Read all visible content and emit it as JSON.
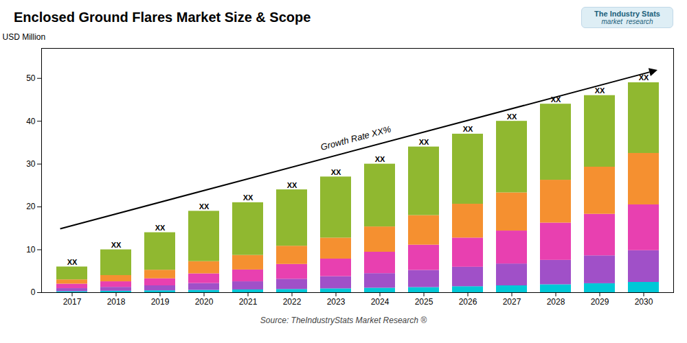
{
  "chart_data": {
    "type": "bar",
    "stacked": true,
    "title": "Enclosed Ground Flares Market Size & Scope",
    "ylabel": "USD Million",
    "caption": "Source: TheIndustryStats Market Research ®",
    "logo": [
      "The Industry Stats",
      "market  research"
    ],
    "annotations": [
      "Growth Rate XX%"
    ],
    "categories": [
      2017,
      2018,
      2019,
      2020,
      2021,
      2022,
      2023,
      2024,
      2025,
      2026,
      2027,
      2028,
      2029,
      2030
    ],
    "series": [
      {
        "color": "#00c8d7",
        "values": [
          0.25,
          0.35,
          0.45,
          0.55,
          0.65,
          0.75,
          0.9,
          1.05,
          1.2,
          1.4,
          1.6,
          1.85,
          2.1,
          2.4
        ]
      },
      {
        "color": "#a050c8",
        "values": [
          0.7,
          0.9,
          1.15,
          1.6,
          1.9,
          2.4,
          2.85,
          3.4,
          4.0,
          4.55,
          5.1,
          5.7,
          6.5,
          7.4
        ]
      },
      {
        "color": "#e840b0",
        "values": [
          1.05,
          1.3,
          1.65,
          2.25,
          2.75,
          3.45,
          4.1,
          5.0,
          5.9,
          6.8,
          7.7,
          8.7,
          9.7,
          10.7
        ]
      },
      {
        "color": "#f59030",
        "values": [
          1.0,
          1.45,
          2.0,
          2.85,
          3.4,
          4.25,
          4.9,
          5.9,
          6.9,
          7.9,
          8.9,
          10.0,
          11.0,
          12.0
        ]
      },
      {
        "color": "#90b830",
        "values": [
          3.0,
          6.0,
          8.75,
          11.75,
          12.3,
          13.15,
          14.25,
          14.65,
          16.0,
          16.35,
          16.7,
          17.75,
          16.7,
          16.5
        ]
      }
    ],
    "total_labels": [
      "XX",
      "XX",
      "XX",
      "XX",
      "XX",
      "XX",
      "XX",
      "XX",
      "XX",
      "XX",
      "XX",
      "XX",
      "XX",
      "XX"
    ],
    "ylim": [
      0,
      57
    ],
    "yticks": [
      0,
      10,
      20,
      30,
      40,
      50
    ],
    "grid": false
  }
}
